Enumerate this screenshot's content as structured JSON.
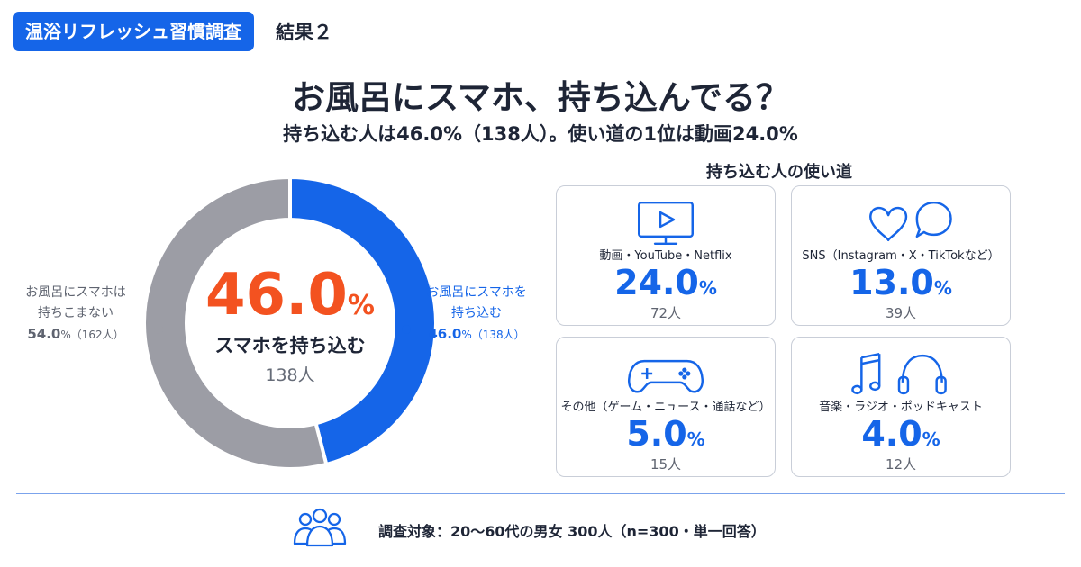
{
  "header": {
    "tag": "温浴リフレッシュ習慣調査",
    "result_label": "結果２",
    "title": "お風呂にスマホ、持ち込んでる？",
    "subtitle": "持ち込む人は46.0%（138人）。使い道の1位は動画24.0%"
  },
  "colors": {
    "accent": "#1565e8",
    "highlight": "#f35220",
    "gray": "#9c9da5"
  },
  "donut": {
    "center_value": "46.0",
    "center_unit": "%",
    "center_label": "スマホを持ち込む",
    "center_count": "138人",
    "left_legend": {
      "line1": "お風呂にスマホは",
      "line2": "持ちこまない",
      "pct": "54.0",
      "sub": "%（162人）"
    },
    "right_legend": {
      "line1": "お風呂にスマホを",
      "line2": "持ち込む",
      "pct": "46.0",
      "sub": "%（138人）"
    }
  },
  "uses": {
    "title": "持ち込む人の使い道",
    "unit": "%",
    "cards": [
      {
        "icon": "tv-play-icon",
        "label": "動画・YouTube・Netflix",
        "value": "24.0",
        "count": "72人"
      },
      {
        "icon": "heart-chat-icon",
        "label": "SNS（Instagram・X・TikTokなど）",
        "value": "13.0",
        "count": "39人"
      },
      {
        "icon": "gamepad-icon",
        "label": "その他（ゲーム・ニュース・通話など）",
        "value": "5.0",
        "count": "15人"
      },
      {
        "icon": "music-headphones-icon",
        "label": "音楽・ラジオ・ポッドキャスト",
        "value": "4.0",
        "count": "12人"
      }
    ]
  },
  "footer": {
    "icon": "people-icon",
    "text": "調査対象：20〜60代の男女 300人（n=300・単一回答）"
  },
  "chart_data": [
    {
      "type": "pie",
      "categories": [
        "お風呂にスマホを持ち込む",
        "お風呂にスマホは持ちこまない"
      ],
      "values": [
        46.0,
        54.0
      ],
      "counts": [
        138,
        162
      ]
    },
    {
      "type": "table",
      "title": "持ち込む人の使い道",
      "categories": [
        "動画・YouTube・Netflix",
        "SNS（Instagram・X・TikTokなど）",
        "その他（ゲーム・ニュース・通話など）",
        "音楽・ラジオ・ポッドキャスト"
      ],
      "values": [
        24.0,
        13.0,
        5.0,
        4.0
      ],
      "counts": [
        72,
        39,
        15,
        12
      ]
    }
  ]
}
